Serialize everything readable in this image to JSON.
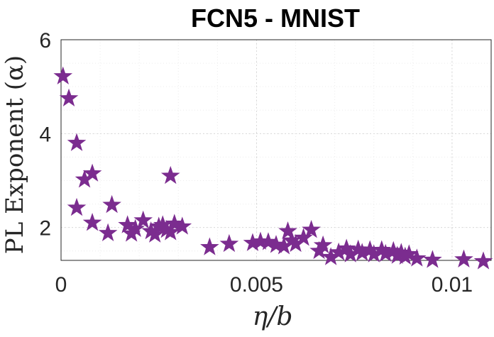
{
  "chart_data": {
    "type": "scatter",
    "title": "FCN5 - MNIST",
    "xlabel": "η/b",
    "ylabel": "PL Exponent (α)",
    "xlim": [
      0,
      0.011
    ],
    "ylim": [
      1.3,
      6
    ],
    "xticks": [
      0,
      0.005,
      0.01
    ],
    "xtick_labels": [
      "0",
      "0.005",
      "0.01"
    ],
    "yticks": [
      2,
      4,
      6
    ],
    "ytick_labels": [
      "2",
      "4",
      "6"
    ],
    "grid": true,
    "marker": "star",
    "marker_color": "#7b2c8f",
    "points": [
      [
        5e-05,
        5.22
      ],
      [
        0.0002,
        4.75
      ],
      [
        0.0004,
        3.8
      ],
      [
        0.0006,
        3.02
      ],
      [
        0.0008,
        3.15
      ],
      [
        0.0004,
        2.42
      ],
      [
        0.0008,
        2.1
      ],
      [
        0.0012,
        1.88
      ],
      [
        0.0013,
        2.48
      ],
      [
        0.0017,
        2.05
      ],
      [
        0.0018,
        1.87
      ],
      [
        0.0019,
        1.97
      ],
      [
        0.0021,
        2.15
      ],
      [
        0.0023,
        1.92
      ],
      [
        0.0024,
        1.85
      ],
      [
        0.0025,
        2.02
      ],
      [
        0.0026,
        2.05
      ],
      [
        0.0027,
        1.95
      ],
      [
        0.0028,
        1.9
      ],
      [
        0.0028,
        3.1
      ],
      [
        0.0029,
        2.08
      ],
      [
        0.0031,
        2.02
      ],
      [
        0.0038,
        1.58
      ],
      [
        0.0043,
        1.65
      ],
      [
        0.0049,
        1.67
      ],
      [
        0.0051,
        1.7
      ],
      [
        0.0053,
        1.69
      ],
      [
        0.0055,
        1.63
      ],
      [
        0.0057,
        1.6
      ],
      [
        0.0058,
        1.92
      ],
      [
        0.0059,
        1.72
      ],
      [
        0.006,
        1.65
      ],
      [
        0.0062,
        1.78
      ],
      [
        0.0064,
        1.95
      ],
      [
        0.0066,
        1.5
      ],
      [
        0.0067,
        1.62
      ],
      [
        0.0069,
        1.37
      ],
      [
        0.0071,
        1.47
      ],
      [
        0.0073,
        1.55
      ],
      [
        0.0074,
        1.43
      ],
      [
        0.0076,
        1.53
      ],
      [
        0.0077,
        1.46
      ],
      [
        0.0079,
        1.52
      ],
      [
        0.008,
        1.43
      ],
      [
        0.0082,
        1.52
      ],
      [
        0.0083,
        1.44
      ],
      [
        0.0085,
        1.5
      ],
      [
        0.0086,
        1.4
      ],
      [
        0.0087,
        1.46
      ],
      [
        0.0088,
        1.38
      ],
      [
        0.0089,
        1.43
      ],
      [
        0.0091,
        1.34
      ],
      [
        0.0095,
        1.31
      ],
      [
        0.0103,
        1.32
      ],
      [
        0.0108,
        1.28
      ]
    ]
  }
}
